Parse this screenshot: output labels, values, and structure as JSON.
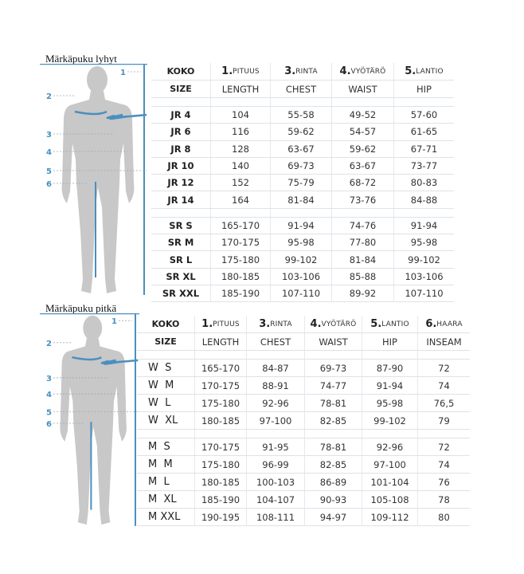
{
  "colors": {
    "accent": "#4a8fc0",
    "figure": "#c8c8c8",
    "text": "#333333"
  },
  "short": {
    "title": "Märkäpuku lyhyt",
    "labels": [
      "1",
      "2",
      "3",
      "4",
      "5",
      "6"
    ],
    "header1": [
      {
        "num": "",
        "text": "KOKO"
      },
      {
        "num": "1.",
        "text": "PITUUS"
      },
      {
        "num": "3.",
        "text": "RINTA"
      },
      {
        "num": "4.",
        "text": "VYÖTÄRÖ"
      },
      {
        "num": "5.",
        "text": "LANTIO"
      }
    ],
    "header2": [
      "SIZE",
      "LENGTH",
      "CHEST",
      "WAIST",
      "HIP"
    ],
    "groups": [
      [
        [
          "JR 4",
          "104",
          "55-58",
          "49-52",
          "57-60"
        ],
        [
          "JR 6",
          "116",
          "59-62",
          "54-57",
          "61-65"
        ],
        [
          "JR 8",
          "128",
          "63-67",
          "59-62",
          "67-71"
        ],
        [
          "JR 10",
          "140",
          "69-73",
          "63-67",
          "73-77"
        ],
        [
          "JR 12",
          "152",
          "75-79",
          "68-72",
          "80-83"
        ],
        [
          "JR 14",
          "164",
          "81-84",
          "73-76",
          "84-88"
        ]
      ],
      [
        [
          "SR S",
          "165-170",
          "91-94",
          "74-76",
          "91-94"
        ],
        [
          "SR M",
          "170-175",
          "95-98",
          "77-80",
          "95-98"
        ],
        [
          "SR L",
          "175-180",
          "99-102",
          "81-84",
          "99-102"
        ],
        [
          "SR XL",
          "180-185",
          "103-106",
          "85-88",
          "103-106"
        ],
        [
          "SR XXL",
          "185-190",
          "107-110",
          "89-92",
          "107-110"
        ]
      ]
    ]
  },
  "long": {
    "title": "Märkäpuku pitkä",
    "labels": [
      "1",
      "2",
      "3",
      "4",
      "5",
      "6"
    ],
    "header1": [
      {
        "num": "",
        "text": "KOKO"
      },
      {
        "num": "1.",
        "text": "PITUUS"
      },
      {
        "num": "3.",
        "text": "RINTA"
      },
      {
        "num": "4.",
        "text": "VYÖTÄRÖ"
      },
      {
        "num": "5.",
        "text": "LANTIO"
      },
      {
        "num": "6.",
        "text": "HAARA"
      }
    ],
    "header2": [
      "SIZE",
      "LENGTH",
      "CHEST",
      "WAIST",
      "HIP",
      "INSEAM"
    ],
    "groups": [
      [
        [
          "W  S",
          "165-170",
          "84-87",
          "69-73",
          "87-90",
          "72"
        ],
        [
          "W  M",
          "170-175",
          "88-91",
          "74-77",
          "91-94",
          "74"
        ],
        [
          "W  L",
          "175-180",
          "92-96",
          "78-81",
          "95-98",
          "76,5"
        ],
        [
          "W  XL",
          "180-185",
          "97-100",
          "82-85",
          "99-102",
          "79"
        ]
      ],
      [
        [
          "M  S",
          "170-175",
          "91-95",
          "78-81",
          "92-96",
          "72"
        ],
        [
          "M  M",
          "175-180",
          "96-99",
          "82-85",
          "97-100",
          "74"
        ],
        [
          "M  L",
          "180-185",
          "100-103",
          "86-89",
          "101-104",
          "76"
        ],
        [
          "M  XL",
          "185-190",
          "104-107",
          "90-93",
          "105-108",
          "78"
        ],
        [
          "M XXL",
          "190-195",
          "108-111",
          "94-97",
          "109-112",
          "80"
        ]
      ]
    ]
  }
}
